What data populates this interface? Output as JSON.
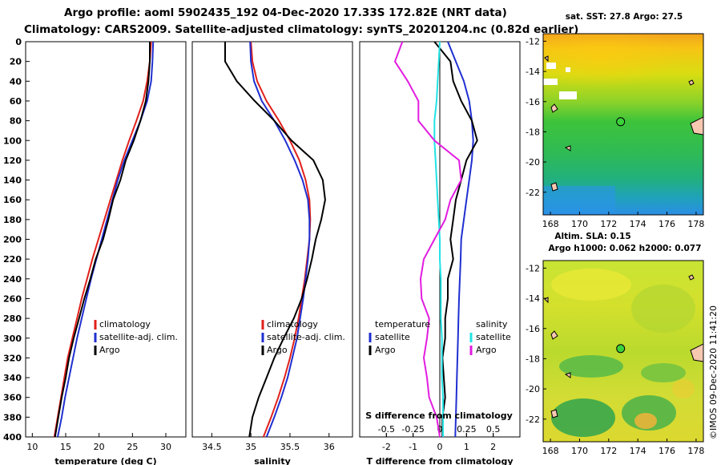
{
  "title": {
    "line1": "Argo profile: aoml 5902435_192 04-Dec-2020 17.33S 172.82E (NRT data)",
    "line2": "Climatology: CARS2009. Satellite-adjusted climatology: synTS_20201204.nc (0.82d earlier)"
  },
  "colors": {
    "climatology": "#e0201b",
    "satellite": "#1f2fd0",
    "argo": "#000000",
    "salinity_satellite": "#22e3e6",
    "salinity_argo": "#e21ce0"
  },
  "chart_data": [
    {
      "type": "line",
      "panel": "temperature",
      "xlabel": "temperature (deg C)",
      "ylabel": "",
      "xlim": [
        9,
        33
      ],
      "ylim": [
        400,
        0
      ],
      "xticks": [
        10,
        15,
        20,
        25,
        30
      ],
      "yticks": [
        0,
        20,
        40,
        60,
        80,
        100,
        120,
        140,
        160,
        180,
        200,
        220,
        240,
        260,
        280,
        300,
        320,
        340,
        360,
        380,
        400
      ],
      "legend": [
        "climatology",
        "satellite-adj. clim.",
        "Argo"
      ],
      "series": [
        {
          "name": "climatology",
          "color_key": "climatology",
          "x": [
            27.8,
            27.6,
            27.2,
            26.6,
            25.6,
            24.5,
            23.5,
            22.6,
            21.7,
            20.8,
            19.9,
            19.0,
            18.2,
            17.4,
            16.7,
            16.0,
            15.3,
            14.8,
            14.3,
            13.8,
            13.3
          ],
          "y": [
            0,
            20,
            40,
            60,
            80,
            100,
            120,
            140,
            160,
            180,
            200,
            220,
            240,
            260,
            280,
            300,
            320,
            340,
            360,
            380,
            400
          ]
        },
        {
          "name": "satellite-adj. clim.",
          "color_key": "satellite",
          "x": [
            28.1,
            28.0,
            27.8,
            27.2,
            26.2,
            25.0,
            23.8,
            22.8,
            22.0,
            21.2,
            20.4,
            19.6,
            18.8,
            18.1,
            17.4,
            16.7,
            16.1,
            15.5,
            14.9,
            14.4,
            13.8
          ],
          "y": [
            0,
            20,
            40,
            60,
            80,
            100,
            120,
            140,
            160,
            180,
            200,
            220,
            240,
            260,
            280,
            300,
            320,
            340,
            360,
            380,
            400
          ]
        },
        {
          "name": "Argo",
          "color_key": "argo",
          "x": [
            27.6,
            27.6,
            27.4,
            27.0,
            26.2,
            25.2,
            24.0,
            23.2,
            22.1,
            21.4,
            20.6,
            19.5,
            18.7,
            17.8,
            17.0,
            16.2,
            15.5,
            15.0,
            14.4,
            13.9,
            13.4
          ],
          "y": [
            0,
            20,
            40,
            60,
            80,
            100,
            120,
            140,
            160,
            180,
            200,
            220,
            240,
            260,
            280,
            300,
            320,
            340,
            360,
            380,
            400
          ]
        }
      ]
    },
    {
      "type": "line",
      "panel": "salinity",
      "xlabel": "salinity",
      "xlim": [
        34.25,
        36.3
      ],
      "ylim": [
        400,
        0
      ],
      "xticks": [
        34.5,
        35,
        35.5,
        36
      ],
      "legend": [
        "climatology",
        "satellite-adj. clim.",
        "Argo"
      ],
      "series": [
        {
          "name": "climatology",
          "color_key": "climatology",
          "x": [
            35.0,
            35.02,
            35.08,
            35.2,
            35.36,
            35.5,
            35.62,
            35.7,
            35.75,
            35.76,
            35.75,
            35.72,
            35.69,
            35.65,
            35.61,
            35.56,
            35.5,
            35.43,
            35.35,
            35.26,
            35.16
          ],
          "y": [
            0,
            20,
            40,
            60,
            80,
            100,
            120,
            140,
            160,
            180,
            200,
            220,
            240,
            260,
            280,
            300,
            320,
            340,
            360,
            380,
            400
          ]
        },
        {
          "name": "satellite-adj. clim.",
          "color_key": "satellite",
          "x": [
            34.99,
            35.0,
            35.04,
            35.14,
            35.3,
            35.44,
            35.56,
            35.66,
            35.73,
            35.75,
            35.75,
            35.73,
            35.7,
            35.67,
            35.63,
            35.59,
            35.53,
            35.47,
            35.39,
            35.3,
            35.2
          ],
          "y": [
            0,
            20,
            40,
            60,
            80,
            100,
            120,
            140,
            160,
            180,
            200,
            220,
            240,
            260,
            280,
            300,
            320,
            340,
            360,
            380,
            400
          ]
        },
        {
          "name": "Argo",
          "color_key": "argo",
          "x": [
            34.67,
            34.67,
            34.82,
            35.05,
            35.3,
            35.52,
            35.8,
            35.92,
            35.95,
            35.9,
            35.83,
            35.78,
            35.72,
            35.65,
            35.55,
            35.42,
            35.3,
            35.2,
            35.1,
            35.02,
            34.98
          ],
          "y": [
            0,
            20,
            40,
            60,
            80,
            100,
            120,
            140,
            160,
            180,
            200,
            220,
            240,
            260,
            280,
            300,
            320,
            340,
            360,
            380,
            400
          ]
        }
      ]
    },
    {
      "type": "line",
      "panel": "difference",
      "xlabel": "T difference from climatology",
      "xlim": [
        -3,
        3
      ],
      "ylim": [
        400,
        0
      ],
      "xticks": [
        -2,
        -1,
        0,
        1,
        2
      ],
      "secondary_xlabel": "S difference from climatology",
      "secondary_xlim": [
        -0.75,
        0.75
      ],
      "secondary_xticks": [
        -0.5,
        -0.25,
        0,
        0.25,
        0.5
      ],
      "secondary_xtick_labels": [
        "-0.5",
        "-0.25",
        "0",
        "0.25",
        "0.5"
      ],
      "legend_temperature": {
        "heading": "temperature",
        "items": [
          "satellite",
          "Argo"
        ]
      },
      "legend_salinity": {
        "heading": "salinity",
        "items": [
          "satellite",
          "Argo"
        ]
      },
      "series": [
        {
          "name": "temperature satellite",
          "color_key": "satellite",
          "axis": "T",
          "x": [
            0.3,
            0.6,
            0.9,
            1.1,
            1.2,
            1.25,
            1.2,
            1.1,
            1.0,
            0.9,
            0.8,
            0.78,
            0.75,
            0.72,
            0.7,
            0.68,
            0.66,
            0.64,
            0.62,
            0.6,
            0.58
          ],
          "y": [
            0,
            20,
            40,
            60,
            80,
            100,
            120,
            140,
            160,
            180,
            200,
            220,
            240,
            260,
            280,
            300,
            320,
            340,
            360,
            380,
            400
          ]
        },
        {
          "name": "temperature Argo",
          "color_key": "argo",
          "axis": "T",
          "x": [
            -0.2,
            0.4,
            0.5,
            0.8,
            1.2,
            1.4,
            1.0,
            0.8,
            0.6,
            0.5,
            0.4,
            0.5,
            0.3,
            0.3,
            0.2,
            0.2,
            0.1,
            0.15,
            0.2,
            0.1,
            0.1
          ],
          "y": [
            0,
            20,
            40,
            60,
            80,
            100,
            120,
            140,
            160,
            180,
            200,
            220,
            240,
            260,
            280,
            300,
            320,
            340,
            360,
            380,
            400
          ]
        },
        {
          "name": "salinity satellite",
          "color_key": "salinity_satellite",
          "axis": "S",
          "x": [
            0.0,
            -0.01,
            -0.02,
            -0.03,
            -0.05,
            -0.05,
            -0.04,
            -0.03,
            -0.02,
            -0.01,
            0.0,
            0.0,
            0.01,
            0.01,
            0.01,
            0.02,
            0.02,
            0.02,
            0.03,
            0.03,
            0.03
          ],
          "y": [
            0,
            20,
            40,
            60,
            80,
            100,
            120,
            140,
            160,
            180,
            200,
            220,
            240,
            260,
            280,
            300,
            320,
            340,
            360,
            380,
            400
          ]
        },
        {
          "name": "salinity Argo",
          "color_key": "salinity_argo",
          "axis": "S",
          "x": [
            -0.35,
            -0.42,
            -0.3,
            -0.2,
            -0.2,
            -0.05,
            0.18,
            0.2,
            0.1,
            0.05,
            -0.05,
            -0.15,
            -0.18,
            -0.17,
            -0.1,
            -0.12,
            -0.15,
            -0.12,
            -0.1,
            -0.03,
            0.0
          ],
          "y": [
            0,
            20,
            40,
            60,
            80,
            100,
            120,
            140,
            160,
            180,
            200,
            220,
            240,
            260,
            280,
            300,
            320,
            340,
            360,
            380,
            400
          ]
        }
      ]
    },
    {
      "type": "heatmap",
      "panel": "sst_map",
      "title": "sat. SST: 27.8 Argo: 27.5",
      "xlim": [
        167.5,
        178.5
      ],
      "ylim": [
        -23.5,
        -11.5
      ],
      "xticks": [
        168,
        170,
        172,
        174,
        176,
        178
      ],
      "yticks": [
        -12,
        -14,
        -16,
        -18,
        -20,
        -22
      ],
      "ytick_labels": [
        "-12",
        "-14",
        "-16",
        "-18",
        "-20",
        "-22"
      ],
      "marker": {
        "lon": 172.82,
        "lat": -17.33
      }
    },
    {
      "type": "heatmap",
      "panel": "sla_map",
      "title_line1": "Altim. SLA: 0.15",
      "title_line2": "Argo h1000: 0.062 h2000: 0.077",
      "xlim": [
        167.5,
        178.5
      ],
      "ylim": [
        -23.5,
        -11.5
      ],
      "xticks": [
        168,
        170,
        172,
        174,
        176,
        178
      ],
      "yticks": [
        -12,
        -14,
        -16,
        -18,
        -20,
        -22
      ],
      "ytick_labels": [
        "-12",
        "-14",
        "-16",
        "-18",
        "-20",
        "-22"
      ],
      "marker": {
        "lon": 172.82,
        "lat": -17.33
      }
    }
  ],
  "credit": "©IMOS 09-Dec-2020 11:41:20"
}
